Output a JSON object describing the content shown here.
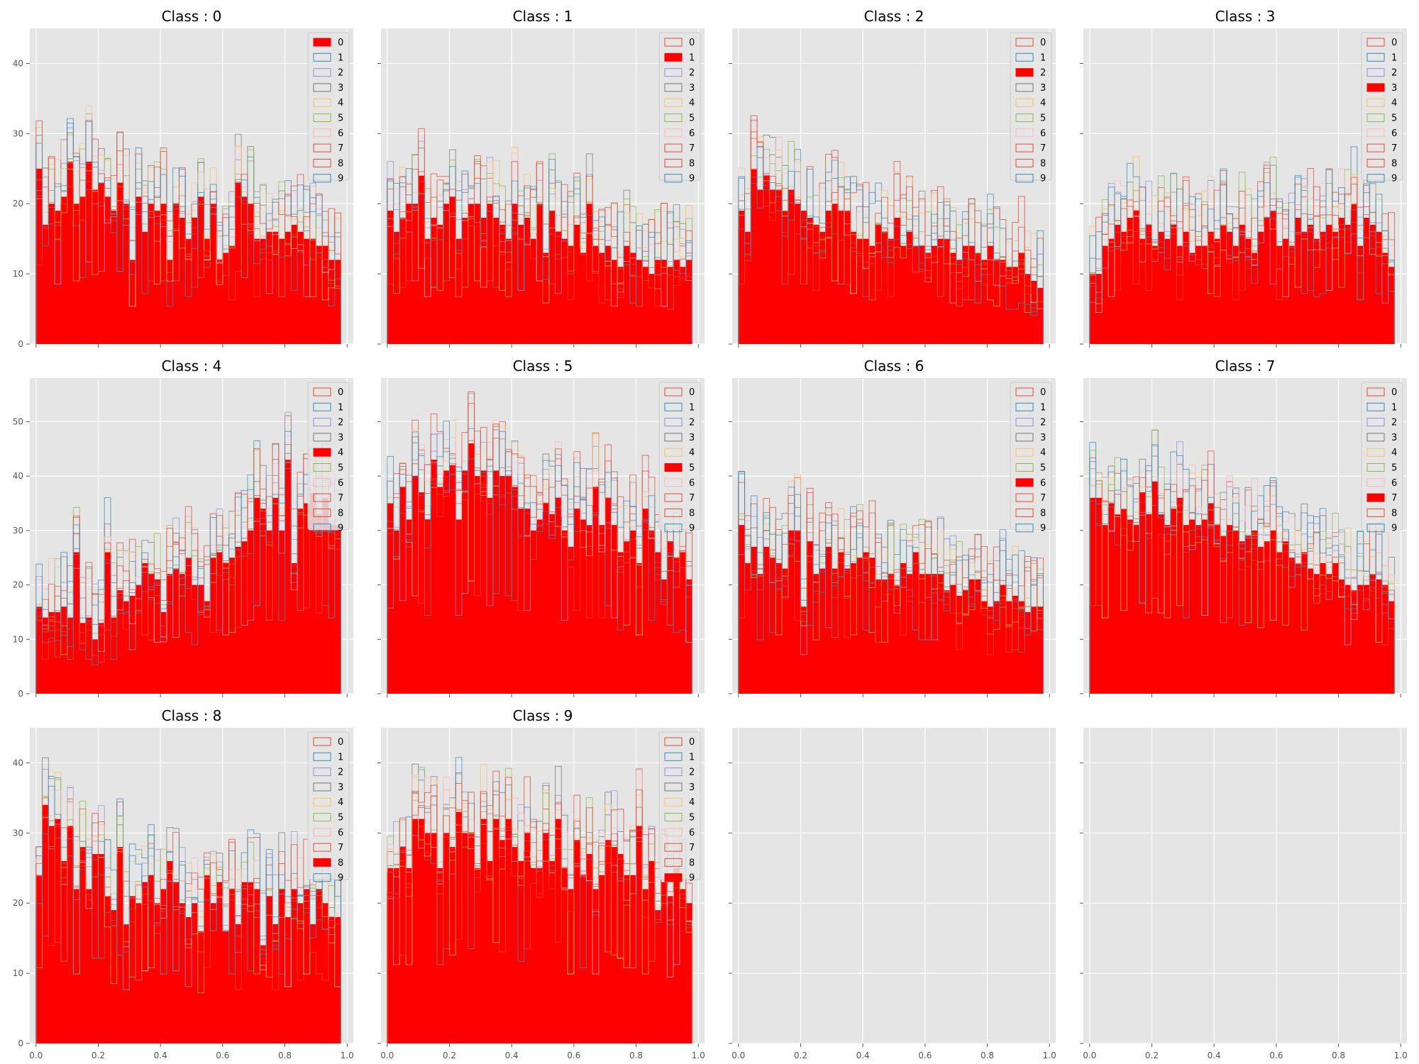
{
  "chart_data": {
    "type": "bar",
    "layout": "4 columns x 3 rows, shared x and y axes per row",
    "colors": {
      "highlight_fill": "#ff0000",
      "outline_cycle": [
        "#e24a33",
        "#348abd",
        "#988ed5",
        "#777777",
        "#fbc15e",
        "#8eba42",
        "#ffb5b8",
        "#e24a33",
        "#e24a33",
        "#348abd"
      ],
      "axes_bg": "#e5e5e5",
      "grid": "#ffffff"
    },
    "legend_labels": [
      "0",
      "1",
      "2",
      "3",
      "4",
      "5",
      "6",
      "7",
      "8",
      "9"
    ],
    "legend_position": "upper right",
    "xlim": [
      -0.02,
      1.02
    ],
    "x_ticks": [
      "0.0",
      "0.2",
      "0.4",
      "0.6",
      "0.8",
      "1.0"
    ],
    "x_tick_values": [
      0,
      0.2,
      0.4,
      0.6,
      0.8,
      1.0
    ],
    "bin_width": 0.02,
    "num_bins": 49,
    "rows": [
      {
        "ylim": [
          0,
          45
        ],
        "y_ticks": [
          "0",
          "10",
          "20",
          "30",
          "40"
        ],
        "y_tick_values": [
          0,
          10,
          20,
          30,
          40
        ]
      },
      {
        "ylim": [
          0,
          58
        ],
        "y_ticks": [
          "0",
          "10",
          "20",
          "30",
          "40",
          "50"
        ],
        "y_tick_values": [
          0,
          10,
          20,
          30,
          40,
          50
        ]
      },
      {
        "ylim": [
          0,
          45
        ],
        "y_ticks": [
          "0",
          "10",
          "20",
          "30",
          "40"
        ],
        "y_tick_values": [
          0,
          10,
          20,
          30,
          40
        ]
      }
    ],
    "panels": [
      {
        "title": "Class : 0",
        "highlight": 0,
        "values": [
          25,
          17,
          20,
          19,
          21,
          26,
          20,
          21,
          26,
          22,
          23,
          21,
          19,
          23,
          20,
          12,
          21,
          16,
          20,
          19,
          20,
          12,
          20,
          18,
          15,
          18,
          21,
          15,
          20,
          12,
          13,
          14,
          23,
          21,
          20,
          15,
          15,
          16,
          16,
          15,
          16,
          17,
          16,
          15,
          15,
          14,
          14,
          12,
          12
        ]
      },
      {
        "title": "Class : 1",
        "highlight": 1,
        "values": [
          19,
          16,
          18,
          20,
          20,
          24,
          15,
          18,
          17,
          20,
          21,
          15,
          18,
          20,
          20,
          18,
          20,
          18,
          17,
          15,
          20,
          17,
          18,
          15,
          20,
          13,
          19,
          16,
          15,
          14,
          17,
          13,
          20,
          14,
          13,
          14,
          12,
          11,
          14,
          13,
          12,
          11,
          10,
          12,
          12,
          11,
          12,
          11,
          12
        ]
      },
      {
        "title": "Class : 2",
        "highlight": 2,
        "values": [
          19,
          16,
          25,
          22,
          24,
          22,
          22,
          19,
          22,
          20,
          19,
          18,
          17,
          16,
          19,
          20,
          19,
          19,
          16,
          15,
          15,
          14,
          17,
          16,
          15,
          18,
          14,
          16,
          14,
          14,
          13,
          14,
          15,
          15,
          13,
          12,
          14,
          14,
          13,
          12,
          14,
          12,
          12,
          11,
          11,
          13,
          10,
          9,
          8
        ]
      },
      {
        "title": "Class : 3",
        "highlight": 3,
        "values": [
          10,
          10,
          14,
          15,
          17,
          16,
          18,
          19,
          15,
          17,
          14,
          16,
          15,
          17,
          14,
          16,
          13,
          14,
          14,
          16,
          15,
          17,
          16,
          14,
          17,
          15,
          13,
          16,
          18,
          19,
          14,
          15,
          14,
          18,
          16,
          17,
          15,
          16,
          17,
          16,
          18,
          17,
          20,
          14,
          18,
          17,
          16,
          13,
          11
        ]
      },
      {
        "title": "Class : 4",
        "highlight": 4,
        "values": [
          16,
          14,
          15,
          15,
          16,
          14,
          26,
          13,
          14,
          10,
          13,
          26,
          14,
          19,
          17,
          18,
          20,
          24,
          22,
          21,
          15,
          22,
          23,
          22,
          25,
          20,
          20,
          17,
          25,
          26,
          24,
          25,
          27,
          28,
          30,
          36,
          34,
          30,
          36,
          30,
          43,
          24,
          34,
          35,
          37,
          33,
          36,
          31,
          31
        ]
      },
      {
        "title": "Class : 5",
        "highlight": 5,
        "values": [
          35,
          30,
          38,
          32,
          40,
          37,
          32,
          43,
          38,
          41,
          42,
          32,
          41,
          46,
          40,
          41,
          36,
          41,
          40,
          40,
          38,
          34,
          34,
          30,
          32,
          35,
          33,
          36,
          30,
          27,
          34,
          32,
          31,
          38,
          31,
          36,
          31,
          26,
          28,
          30,
          24,
          34,
          30,
          26,
          21,
          28,
          25,
          26,
          21
        ]
      },
      {
        "title": "Class : 6",
        "highlight": 6,
        "values": [
          31,
          24,
          27,
          22,
          27,
          25,
          24,
          23,
          30,
          30,
          16,
          28,
          22,
          23,
          27,
          23,
          26,
          23,
          24,
          25,
          26,
          25,
          21,
          21,
          22,
          20,
          24,
          22,
          26,
          22,
          22,
          22,
          22,
          19,
          20,
          18,
          19,
          21,
          21,
          17,
          16,
          17,
          20,
          17,
          18,
          17,
          15,
          16,
          16
        ]
      },
      {
        "title": "Class : 7",
        "highlight": 7,
        "values": [
          36,
          36,
          31,
          35,
          33,
          34,
          32,
          31,
          37,
          33,
          39,
          33,
          31,
          34,
          36,
          31,
          32,
          31,
          32,
          35,
          31,
          29,
          31,
          30,
          28,
          29,
          30,
          27,
          28,
          30,
          26,
          28,
          25,
          24,
          26,
          23,
          22,
          24,
          22,
          24,
          21,
          20,
          19,
          20,
          20,
          22,
          21,
          20,
          17
        ]
      },
      {
        "title": "Class : 8",
        "highlight": 8,
        "values": [
          24,
          34,
          31,
          32,
          26,
          31,
          22,
          28,
          22,
          27,
          27,
          21,
          19,
          28,
          17,
          21,
          20,
          23,
          24,
          20,
          22,
          26,
          23,
          20,
          18,
          20,
          16,
          24,
          20,
          23,
          16,
          22,
          17,
          23,
          23,
          22,
          14,
          21,
          17,
          22,
          18,
          22,
          20,
          22,
          17,
          22,
          20,
          18,
          18
        ]
      },
      {
        "title": "Class : 9",
        "highlight": 9,
        "values": [
          25,
          25,
          28,
          25,
          32,
          32,
          30,
          30,
          25,
          30,
          28,
          33,
          30,
          30,
          25,
          32,
          26,
          32,
          29,
          32,
          28,
          26,
          30,
          25,
          25,
          30,
          26,
          32,
          25,
          22,
          29,
          24,
          27,
          22,
          24,
          29,
          28,
          27,
          24,
          24,
          31,
          22,
          26,
          19,
          23,
          21,
          25,
          22,
          20
        ]
      },
      {
        "title": "",
        "highlight": null,
        "values": []
      },
      {
        "title": "",
        "highlight": null,
        "values": []
      }
    ]
  }
}
